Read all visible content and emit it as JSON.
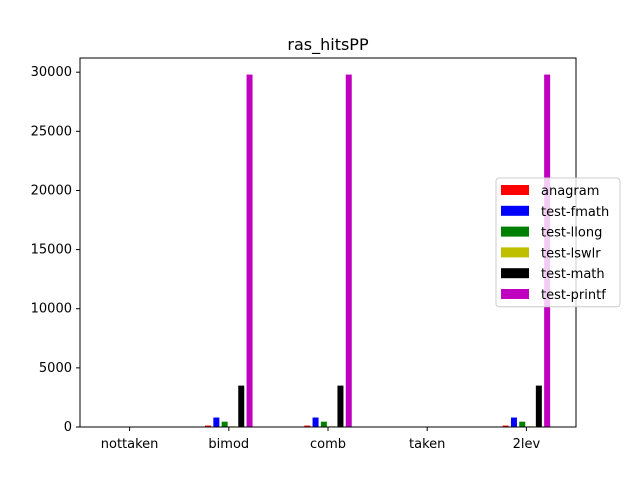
{
  "chart_data": {
    "type": "bar",
    "title": "ras_hitsPP",
    "xlabel": "",
    "ylabel": "",
    "categories": [
      "nottaken",
      "bimod",
      "comb",
      "taken",
      "2lev"
    ],
    "ylim": [
      0,
      31200
    ],
    "yticks": [
      0,
      5000,
      10000,
      15000,
      20000,
      25000,
      30000
    ],
    "grid": false,
    "legend_position": "center-right",
    "series": [
      {
        "name": "anagram",
        "color": "#ff0000",
        "values": [
          0,
          120,
          120,
          0,
          120
        ]
      },
      {
        "name": "test-fmath",
        "color": "#0000ff",
        "values": [
          0,
          800,
          800,
          0,
          800
        ]
      },
      {
        "name": "test-llong",
        "color": "#008000",
        "values": [
          0,
          450,
          450,
          0,
          450
        ]
      },
      {
        "name": "test-lswlr",
        "color": "#bfbf00",
        "values": [
          0,
          60,
          60,
          0,
          60
        ]
      },
      {
        "name": "test-math",
        "color": "#000000",
        "values": [
          0,
          3500,
          3500,
          0,
          3500
        ]
      },
      {
        "name": "test-printf",
        "color": "#bf00bf",
        "values": [
          0,
          29800,
          29800,
          0,
          29800
        ]
      }
    ]
  }
}
